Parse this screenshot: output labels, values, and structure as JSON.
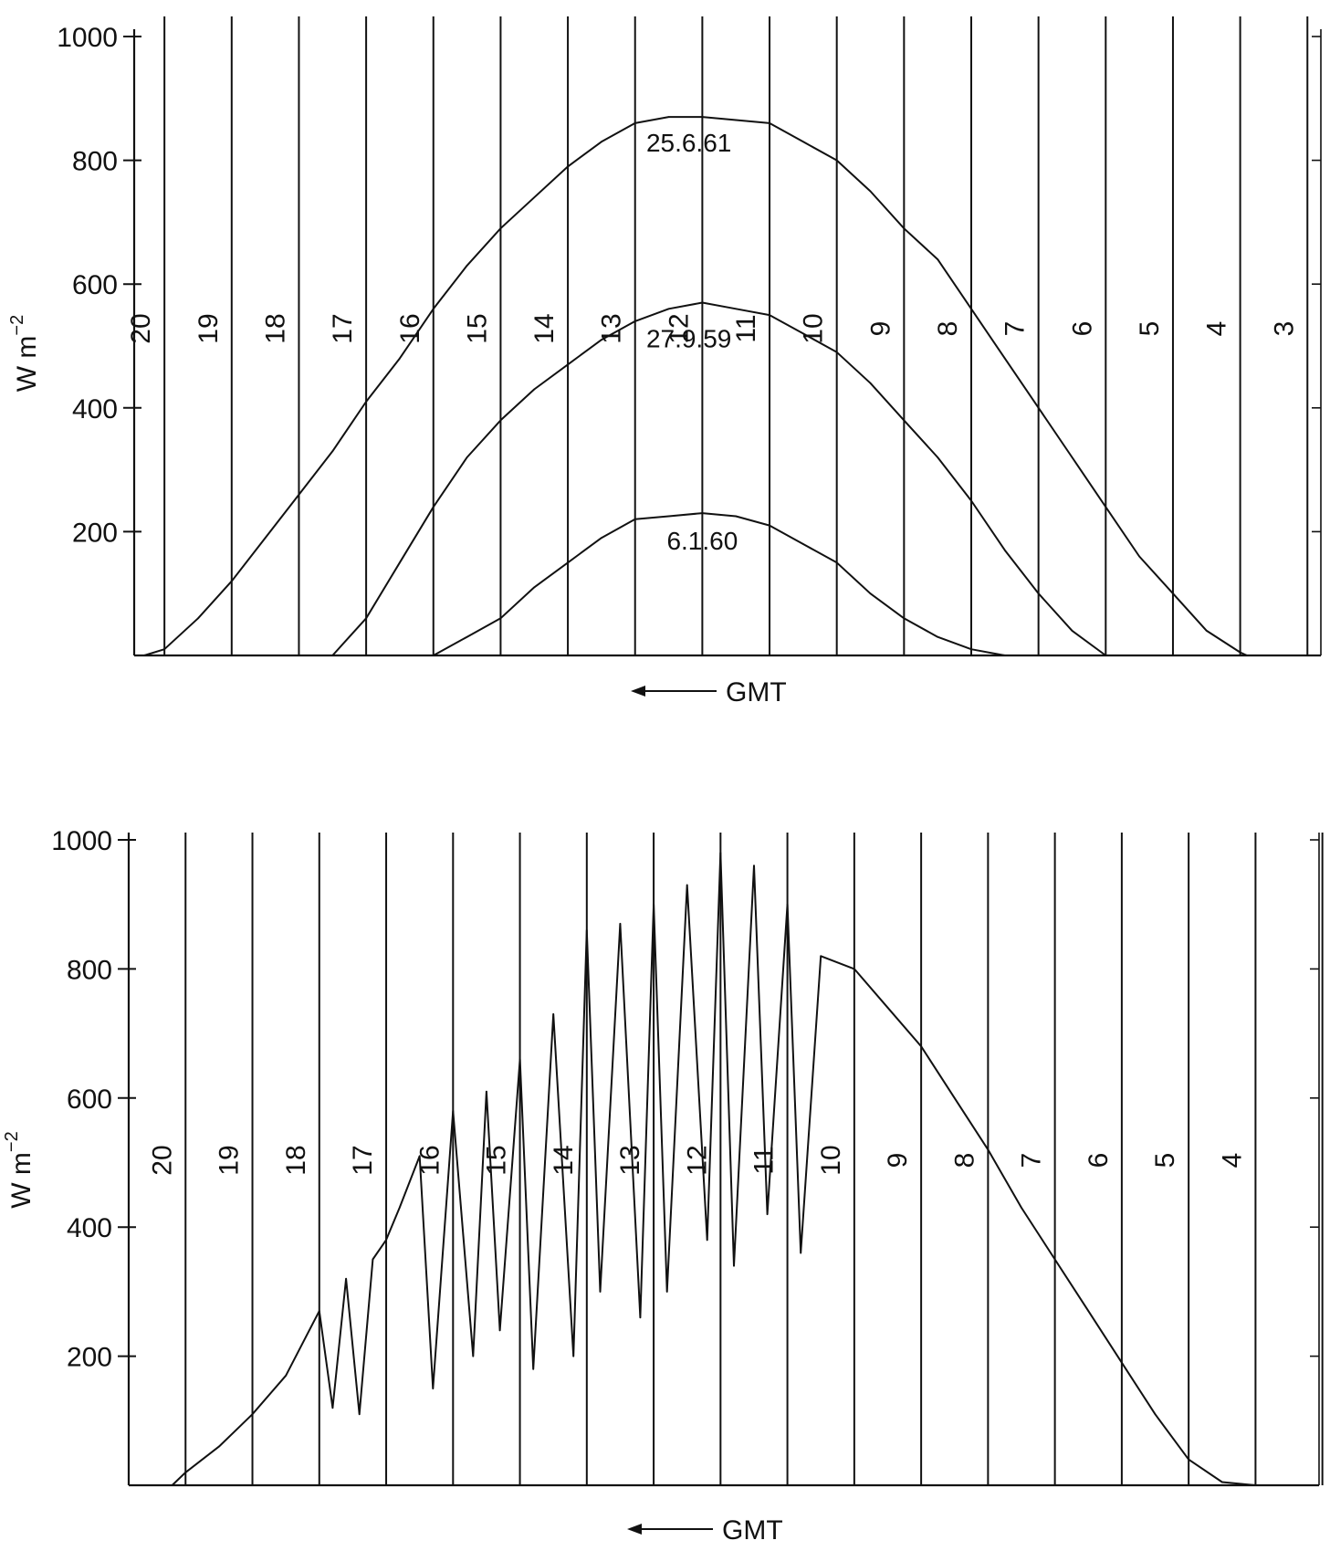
{
  "chart_data": [
    {
      "type": "line",
      "ylabel": "W m",
      "ylabel_sup": "−2",
      "xlabel": "GMT",
      "xlabel_arrow": "←",
      "ylim": [
        0,
        1000
      ],
      "yticks": [
        200,
        400,
        600,
        800,
        1000
      ],
      "x_direction": "reversed",
      "x_domain_hours": [
        20.45,
        2.8
      ],
      "grid": "vertical hour lines",
      "hour_lines": [
        {
          "hour": 20,
          "label": "20"
        },
        {
          "hour": 19,
          "label": "19"
        },
        {
          "hour": 18,
          "label": "18"
        },
        {
          "hour": 17,
          "label": "17"
        },
        {
          "hour": 16,
          "label": "16"
        },
        {
          "hour": 15,
          "label": "15"
        },
        {
          "hour": 14,
          "label": "14"
        },
        {
          "hour": 13,
          "label": "13"
        },
        {
          "hour": 12,
          "label": "12"
        },
        {
          "hour": 11,
          "label": "11"
        },
        {
          "hour": 10,
          "label": "10"
        },
        {
          "hour": 9,
          "label": "9"
        },
        {
          "hour": 8,
          "label": "8"
        },
        {
          "hour": 7,
          "label": "7"
        },
        {
          "hour": 6,
          "label": "6"
        },
        {
          "hour": 5,
          "label": "5"
        },
        {
          "hour": 4,
          "label": "4"
        },
        {
          "hour": 3,
          "label": "3"
        }
      ],
      "series": [
        {
          "name": "25.6.61",
          "x": [
            20.3,
            20.0,
            19.5,
            19.0,
            18.5,
            18.0,
            17.5,
            17.0,
            16.5,
            16.0,
            15.5,
            15.0,
            14.5,
            14.0,
            13.5,
            13.0,
            12.5,
            12.0,
            11.5,
            11.0,
            10.5,
            10.0,
            9.5,
            9.0,
            8.5,
            8.0,
            7.5,
            7.0,
            6.5,
            6.0,
            5.5,
            5.0,
            4.5,
            4.0,
            3.9
          ],
          "y": [
            0,
            10,
            60,
            120,
            190,
            260,
            330,
            410,
            480,
            560,
            630,
            690,
            740,
            790,
            830,
            860,
            870,
            870,
            865,
            860,
            830,
            800,
            750,
            690,
            640,
            560,
            480,
            400,
            320,
            240,
            160,
            100,
            40,
            5,
            0
          ]
        },
        {
          "name": "27.9.59",
          "x": [
            17.5,
            17.0,
            16.5,
            16.0,
            15.5,
            15.0,
            14.5,
            14.0,
            13.5,
            13.0,
            12.5,
            12.0,
            11.5,
            11.0,
            10.5,
            10.0,
            9.5,
            9.0,
            8.5,
            8.0,
            7.5,
            7.0,
            6.5,
            6.0
          ],
          "y": [
            0,
            60,
            150,
            240,
            320,
            380,
            430,
            470,
            510,
            540,
            560,
            570,
            560,
            550,
            520,
            490,
            440,
            380,
            320,
            250,
            170,
            100,
            40,
            0
          ]
        },
        {
          "name": "6.1.60",
          "x": [
            16.0,
            15.5,
            15.0,
            14.5,
            14.0,
            13.5,
            13.0,
            12.5,
            12.0,
            11.5,
            11.0,
            10.5,
            10.0,
            9.5,
            9.0,
            8.5,
            8.0,
            7.5
          ],
          "y": [
            0,
            30,
            60,
            110,
            150,
            190,
            220,
            225,
            230,
            225,
            210,
            180,
            150,
            100,
            60,
            30,
            10,
            0
          ]
        }
      ]
    },
    {
      "type": "line",
      "ylabel": "W m",
      "ylabel_sup": "−2",
      "xlabel": "GMT",
      "xlabel_arrow": "←",
      "ylim": [
        0,
        1000
      ],
      "yticks": [
        200,
        400,
        600,
        800,
        1000
      ],
      "x_direction": "reversed",
      "x_domain_hours": [
        20.85,
        3.05
      ],
      "grid": "vertical hour lines",
      "hour_lines": [
        {
          "hour": 20,
          "label": "20"
        },
        {
          "hour": 19,
          "label": "19"
        },
        {
          "hour": 18,
          "label": "18"
        },
        {
          "hour": 17,
          "label": "17"
        },
        {
          "hour": 16,
          "label": "16"
        },
        {
          "hour": 15,
          "label": "15"
        },
        {
          "hour": 14,
          "label": "14"
        },
        {
          "hour": 13,
          "label": "13"
        },
        {
          "hour": 12,
          "label": "12"
        },
        {
          "hour": 11,
          "label": "11"
        },
        {
          "hour": 10,
          "label": "10"
        },
        {
          "hour": 9,
          "label": "9"
        },
        {
          "hour": 8,
          "label": "8"
        },
        {
          "hour": 7,
          "label": "7"
        },
        {
          "hour": 6,
          "label": "6"
        },
        {
          "hour": 5,
          "label": "5"
        },
        {
          "hour": 4,
          "label": "4"
        },
        {
          "hour": 3,
          "label": ""
        }
      ],
      "series": [
        {
          "name": "",
          "x": [
            20.2,
            20.0,
            19.5,
            19.0,
            18.5,
            18.2,
            18.0,
            17.8,
            17.6,
            17.4,
            17.2,
            17.0,
            16.8,
            16.5,
            16.3,
            16.0,
            15.7,
            15.5,
            15.3,
            15.0,
            14.8,
            14.5,
            14.2,
            14.0,
            13.8,
            13.5,
            13.2,
            13.0,
            12.8,
            12.5,
            12.2,
            12.0,
            11.8,
            11.5,
            11.3,
            11.0,
            10.8,
            10.5,
            10.0,
            9.5,
            9.0,
            8.5,
            8.0,
            7.5,
            7.0,
            6.5,
            6.0,
            5.5,
            5.0,
            4.5,
            4.2,
            4.0
          ],
          "y": [
            0,
            20,
            60,
            110,
            170,
            230,
            270,
            120,
            320,
            110,
            350,
            380,
            430,
            510,
            150,
            580,
            200,
            610,
            240,
            660,
            180,
            730,
            200,
            860,
            300,
            870,
            260,
            900,
            300,
            930,
            380,
            980,
            340,
            960,
            420,
            900,
            360,
            820,
            800,
            740,
            680,
            600,
            520,
            430,
            350,
            270,
            190,
            110,
            40,
            5,
            2,
            0
          ]
        }
      ]
    }
  ]
}
